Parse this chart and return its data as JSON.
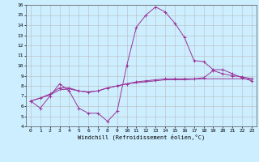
{
  "xlabel": "Windchill (Refroidissement éolien,°C)",
  "background_color": "#cceeff",
  "line_color": "#993399",
  "grid_color": "#bbbbbb",
  "xlim": [
    -0.5,
    23.5
  ],
  "ylim": [
    4,
    16
  ],
  "xticks": [
    0,
    1,
    2,
    3,
    4,
    5,
    6,
    7,
    8,
    9,
    10,
    11,
    12,
    13,
    14,
    15,
    16,
    17,
    18,
    19,
    20,
    21,
    22,
    23
  ],
  "yticks": [
    4,
    5,
    6,
    7,
    8,
    9,
    10,
    11,
    12,
    13,
    14,
    15,
    16
  ],
  "line1_x": [
    0,
    1,
    2,
    3,
    4,
    5,
    6,
    7,
    8,
    9,
    10,
    11,
    12,
    13,
    14,
    15,
    16,
    17,
    18,
    19,
    20,
    21,
    22,
    23
  ],
  "line1_y": [
    6.5,
    5.8,
    7.0,
    8.2,
    7.5,
    5.8,
    5.3,
    5.3,
    4.5,
    5.5,
    10.0,
    13.8,
    15.0,
    15.8,
    15.3,
    14.2,
    12.8,
    10.5,
    10.4,
    9.6,
    9.6,
    9.2,
    8.8,
    8.5
  ],
  "line2_x": [
    0,
    1,
    2,
    3,
    4,
    5,
    6,
    7,
    8,
    9,
    10,
    11,
    12,
    13,
    14,
    15,
    16,
    17,
    18,
    19,
    20,
    21,
    22,
    23
  ],
  "line2_y": [
    6.5,
    6.8,
    7.2,
    7.8,
    7.8,
    7.5,
    7.4,
    7.5,
    7.8,
    8.0,
    8.2,
    8.4,
    8.5,
    8.6,
    8.7,
    8.7,
    8.7,
    8.7,
    8.8,
    9.5,
    9.2,
    9.0,
    8.9,
    8.7
  ],
  "line3_x": [
    0,
    1,
    2,
    3,
    4,
    5,
    6,
    7,
    8,
    9,
    10,
    11,
    12,
    13,
    14,
    15,
    16,
    17,
    18,
    19,
    20,
    21,
    22,
    23
  ],
  "line3_y": [
    6.5,
    6.8,
    7.1,
    7.6,
    7.7,
    7.5,
    7.4,
    7.5,
    7.8,
    8.0,
    8.2,
    8.3,
    8.4,
    8.5,
    8.6,
    8.6,
    8.6,
    8.65,
    8.7,
    8.7,
    8.7,
    8.7,
    8.7,
    8.65
  ],
  "tick_fontsize": 4.5,
  "xlabel_fontsize": 5.0
}
